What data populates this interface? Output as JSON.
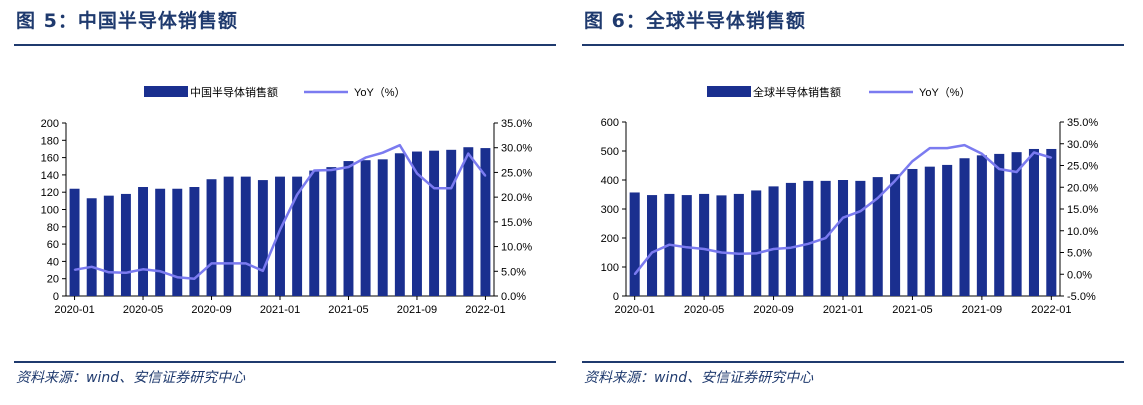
{
  "colors": {
    "title": "#1f3a6e",
    "bar": "#1a2f8f",
    "line": "#7b7bf0"
  },
  "panels": [
    {
      "title": "图 5：中国半导体销售额",
      "source": "资料来源：wind、安信证券研究中心",
      "legend": {
        "bar": "中国半导体销售额",
        "line": "YoY（%）"
      },
      "chart_data": {
        "type": "bar+line",
        "title": "图 5：中国半导体销售额",
        "xlabel": "",
        "ylabel": "",
        "categories": [
          "2020-01",
          "2020-02",
          "2020-03",
          "2020-04",
          "2020-05",
          "2020-06",
          "2020-07",
          "2020-08",
          "2020-09",
          "2020-10",
          "2020-11",
          "2020-12",
          "2021-01",
          "2021-02",
          "2021-03",
          "2021-04",
          "2021-05",
          "2021-06",
          "2021-07",
          "2021-08",
          "2021-09",
          "2021-10",
          "2021-11",
          "2021-12",
          "2022-01"
        ],
        "xticks": [
          "2020-01",
          "2020-05",
          "2020-09",
          "2021-01",
          "2021-05",
          "2021-09",
          "2022-01"
        ],
        "series": [
          {
            "name": "中国半导体销售额",
            "type": "bar",
            "axis": "left",
            "values": [
              124,
              113,
              116,
              118,
              126,
              124,
              124,
              126,
              135,
              138,
              138,
              134,
              138,
              138,
              145,
              149,
              156,
              157,
              158,
              165,
              167,
              168,
              169,
              172,
              171
            ]
          },
          {
            "name": "YoY（%）",
            "type": "line",
            "axis": "right",
            "values": [
              5.3,
              5.9,
              4.8,
              4.7,
              5.4,
              5.0,
              3.8,
              3.5,
              6.6,
              6.6,
              6.6,
              5.1,
              13.4,
              20.5,
              25.4,
              25.5,
              26.1,
              28.0,
              29.0,
              30.5,
              24.8,
              21.8,
              21.8,
              28.8,
              24.3
            ]
          }
        ],
        "ylim_left": [
          0,
          200
        ],
        "yticks_left": [
          "0",
          "20",
          "40",
          "60",
          "80",
          "100",
          "120",
          "140",
          "160",
          "180",
          "200"
        ],
        "ylim_right": [
          0,
          35
        ],
        "yticks_right": [
          "0.0%",
          "5.0%",
          "10.0%",
          "15.0%",
          "20.0%",
          "25.0%",
          "30.0%",
          "35.0%"
        ],
        "grid": false
      }
    },
    {
      "title": "图 6：全球半导体销售额",
      "source": "资料来源：wind、安信证券研究中心",
      "legend": {
        "bar": "全球半导体销售额",
        "line": "YoY（%）"
      },
      "chart_data": {
        "type": "bar+line",
        "title": "图 6：全球半导体销售额",
        "xlabel": "",
        "ylabel": "",
        "categories": [
          "2020-01",
          "2020-02",
          "2020-03",
          "2020-04",
          "2020-05",
          "2020-06",
          "2020-07",
          "2020-08",
          "2020-09",
          "2020-10",
          "2020-11",
          "2020-12",
          "2021-01",
          "2021-02",
          "2021-03",
          "2021-04",
          "2021-05",
          "2021-06",
          "2021-07",
          "2021-08",
          "2021-09",
          "2021-10",
          "2021-11",
          "2021-12",
          "2022-01"
        ],
        "xticks": [
          "2020-01",
          "2020-05",
          "2020-09",
          "2021-01",
          "2021-05",
          "2021-09",
          "2022-01"
        ],
        "series": [
          {
            "name": "全球半导体销售额",
            "type": "bar",
            "axis": "left",
            "values": [
              357,
              348,
              352,
              348,
              352,
              347,
              352,
              364,
              378,
              390,
              397,
              397,
              400,
              397,
              410,
              420,
              438,
              446,
              452,
              475,
              485,
              490,
              496,
              507,
              507
            ]
          },
          {
            "name": "YoY（%）",
            "type": "line",
            "axis": "right",
            "values": [
              0.0,
              5.0,
              6.8,
              6.2,
              5.8,
              5.0,
              4.7,
              4.8,
              5.8,
              6.1,
              7.0,
              8.3,
              13.0,
              14.5,
              17.5,
              21.5,
              26.0,
              29.0,
              29.0,
              29.7,
              27.7,
              24.2,
              23.5,
              28.0,
              26.8
            ]
          }
        ],
        "ylim_left": [
          0,
          600
        ],
        "yticks_left": [
          "0",
          "100",
          "200",
          "300",
          "400",
          "500",
          "600"
        ],
        "ylim_right": [
          -5,
          35
        ],
        "yticks_right": [
          "-5.0%",
          "0.0%",
          "5.0%",
          "10.0%",
          "15.0%",
          "20.0%",
          "25.0%",
          "30.0%",
          "35.0%"
        ],
        "grid": false
      }
    }
  ]
}
